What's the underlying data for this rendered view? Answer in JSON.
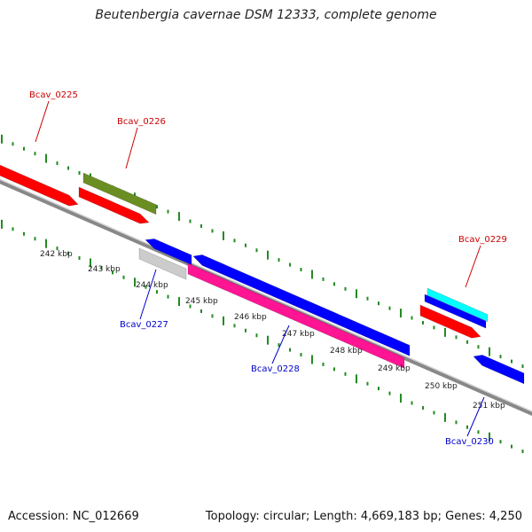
{
  "title": "Beutenbergia cavernae DSM 12333, complete genome",
  "footer": {
    "accession": "Accession: NC_012669",
    "topology": "Topology: circular; Length: 4,669,183 bp; Genes: 4,250"
  },
  "scale_labels": [
    "242 kbp",
    "243 kbp",
    "244 kbp",
    "245 kbp",
    "246 kbp",
    "247 kbp",
    "248 kbp",
    "249 kbp",
    "250 kbp",
    "251 kbp"
  ],
  "genes": [
    {
      "id": "Bcav_0225",
      "strand": "forward",
      "color": "#ff0000",
      "label_color": "#cc0000"
    },
    {
      "id": "Bcav_0226",
      "strand": "forward",
      "color": "#ff0000",
      "label_color": "#cc0000"
    },
    {
      "id": "Bcav_0227",
      "strand": "reverse",
      "color": "#cccccc",
      "label_color": "#0000cc"
    },
    {
      "id": "Bcav_0228",
      "strand": "reverse",
      "color": "#ff1493",
      "label_color": "#0000cc"
    },
    {
      "id": "Bcav_0229",
      "strand": "forward",
      "color": "#ff0000",
      "label_color": "#cc0000"
    },
    {
      "id": "Bcav_0230",
      "strand": "reverse",
      "color": "#0000ff",
      "label_color": "#0000cc"
    }
  ],
  "colors": {
    "backbone": "#888888",
    "tick_dots": "#228b22",
    "forward_gene": "#ff0000",
    "reverse_gene": "#0000ff",
    "feature_olive": "#6b8e23",
    "feature_cyan": "#00ffff",
    "feature_pink": "#ff1493",
    "feature_grey": "#cccccc"
  }
}
